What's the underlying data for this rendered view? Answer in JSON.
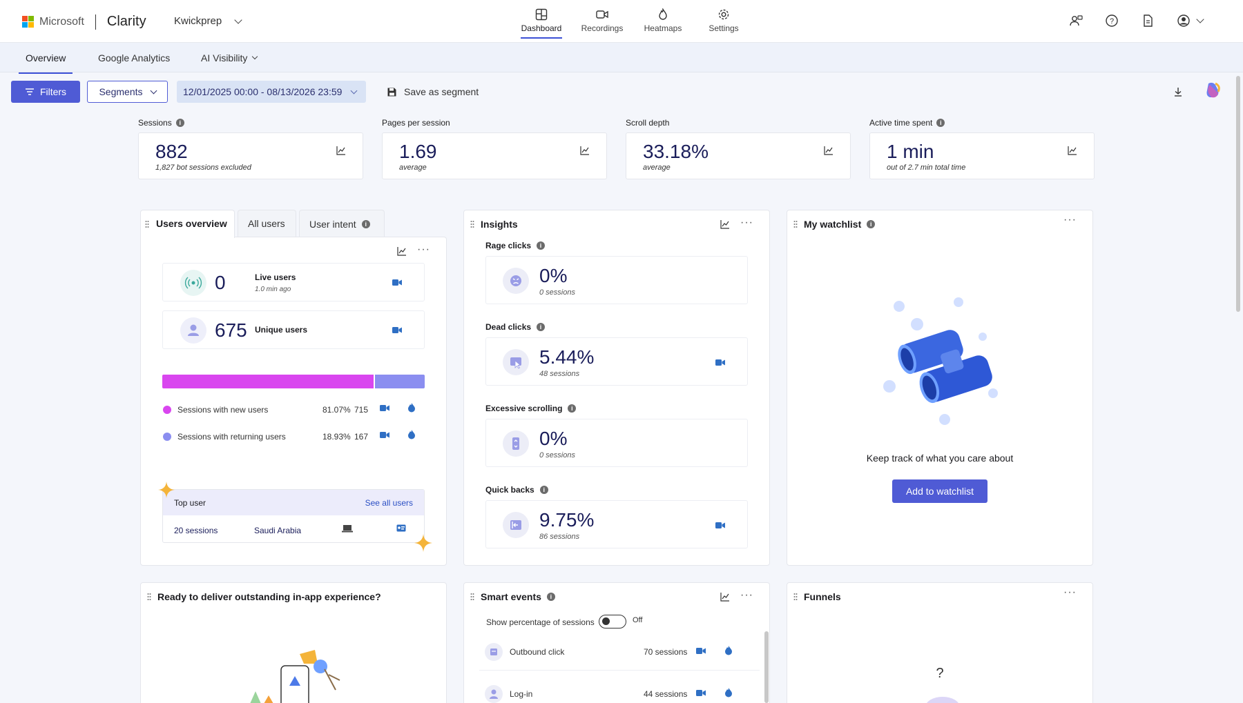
{
  "brand": {
    "company": "Microsoft",
    "app": "Clarity",
    "project": "Kwickprep"
  },
  "nav": [
    {
      "label": "Dashboard",
      "icon": "dashboard-icon",
      "active": true
    },
    {
      "label": "Recordings",
      "icon": "video-camera-icon",
      "active": false
    },
    {
      "label": "Heatmaps",
      "icon": "flame-icon",
      "active": false
    },
    {
      "label": "Settings",
      "icon": "gear-icon",
      "active": false
    }
  ],
  "topright_icons": [
    "people-icon",
    "help-icon",
    "document-icon",
    "account-icon"
  ],
  "subnav": {
    "tabs": [
      {
        "label": "Overview",
        "active": true
      },
      {
        "label": "Google Analytics",
        "active": false
      },
      {
        "label": "AI Visibility",
        "active": false
      }
    ]
  },
  "toolbar": {
    "filters": "Filters",
    "segments": "Segments",
    "date_range": "12/01/2025 00:00 - 08/13/2026 23:59",
    "save_segment": "Save as segment"
  },
  "metrics": [
    {
      "label": "Sessions",
      "value": "882",
      "sub": "1,827 bot sessions excluded",
      "info": true
    },
    {
      "label": "Pages per session",
      "value": "1.69",
      "sub": "average",
      "info": false
    },
    {
      "label": "Scroll depth",
      "value": "33.18%",
      "sub": "average",
      "info": false
    },
    {
      "label": "Active time spent",
      "value": "1 min",
      "sub": "out of 2.7 min total time",
      "info": true
    }
  ],
  "users_overview": {
    "tabs": [
      "Users overview",
      "All users",
      "User intent"
    ],
    "live": {
      "value": "0",
      "label": "Live users",
      "sub": "1.0 min ago"
    },
    "unique": {
      "value": "675",
      "label": "Unique users"
    },
    "split": {
      "new_fraction": 0.8107,
      "new_color": "#d946ef",
      "returning_color": "#8b8ef0"
    },
    "legend": [
      {
        "label": "Sessions with new users",
        "pct": "81.07%",
        "count": "715",
        "color": "#d946ef"
      },
      {
        "label": "Sessions with returning users",
        "pct": "18.93%",
        "count": "167",
        "color": "#8b8ef0"
      }
    ],
    "top_user": {
      "title": "Top user",
      "link": "See all users",
      "sessions": "20 sessions",
      "country": "Saudi Arabia"
    }
  },
  "insights": {
    "title": "Insights",
    "items": [
      {
        "label": "Rage clicks",
        "value": "0%",
        "sub": "0 sessions",
        "has_recording": false
      },
      {
        "label": "Dead clicks",
        "value": "5.44%",
        "sub": "48 sessions",
        "has_recording": true
      },
      {
        "label": "Excessive scrolling",
        "value": "0%",
        "sub": "0 sessions",
        "has_recording": false
      },
      {
        "label": "Quick backs",
        "value": "9.75%",
        "sub": "86 sessions",
        "has_recording": true
      }
    ]
  },
  "watchlist": {
    "title": "My watchlist",
    "message": "Keep track of what you care about",
    "button": "Add to watchlist"
  },
  "inapp": {
    "title": "Ready to deliver outstanding in-app experience?"
  },
  "smart_events": {
    "title": "Smart events",
    "toggle_label": "Show percentage of sessions",
    "toggle_state": "Off",
    "rows": [
      {
        "name": "Outbound click",
        "value": "70 sessions"
      },
      {
        "name": "Log-in",
        "value": "44 sessions"
      }
    ]
  },
  "funnels": {
    "title": "Funnels",
    "placeholder": "?"
  }
}
